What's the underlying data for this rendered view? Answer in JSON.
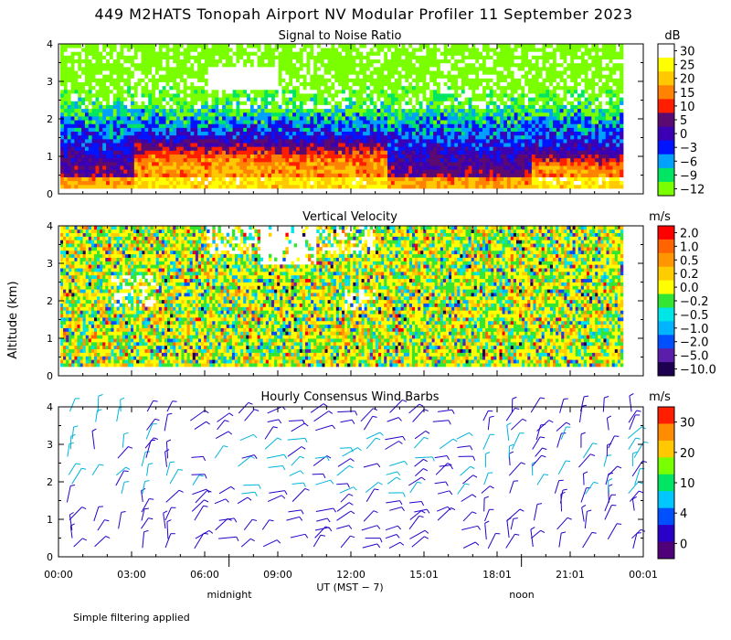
{
  "title": "449 M2HATS Tonopah Airport NV Modular Profiler 11 September 2023",
  "ylabel": "Altitude (km)",
  "xlabel": "UT  (MST − 7)",
  "day_labels": [
    "midnight",
    "noon"
  ],
  "footnote": "Simple filtering applied",
  "x_ticks": [
    "00:00",
    "03:00",
    "06:00",
    "09:00",
    "12:00",
    "15:01",
    "18:01",
    "21:01",
    "00:01"
  ],
  "y_ticks": [
    "0",
    "1",
    "2",
    "3",
    "4"
  ],
  "chart_data": [
    {
      "type": "heatmap",
      "title": "Signal to Noise Ratio",
      "unit": "dB",
      "ylim": [
        0,
        4
      ],
      "xlim_hours": [
        0,
        24
      ],
      "colorbar": {
        "labels": [
          "30",
          "25",
          "20",
          "15",
          "10",
          "5",
          "0",
          "−3",
          "−6",
          "−9",
          "−12"
        ],
        "colors": [
          "#ffffff",
          "#ffff00",
          "#ffc800",
          "#ff8200",
          "#ff1e00",
          "#5a0a70",
          "#3c00b4",
          "#0014ff",
          "#00a0ff",
          "#00e664",
          "#7aff00"
        ]
      }
    },
    {
      "type": "heatmap",
      "title": "Vertical Velocity",
      "unit": "m/s",
      "ylim": [
        0,
        4
      ],
      "xlim_hours": [
        0,
        24
      ],
      "colorbar": {
        "labels": [
          "2.0",
          "1.0",
          "0.5",
          "0.2",
          "0.0",
          "−0.2",
          "−0.5",
          "−1.0",
          "−2.0",
          "−5.0",
          "−10.0"
        ],
        "colors": [
          "#ff0000",
          "#ff6400",
          "#ff9600",
          "#ffcc00",
          "#ffff00",
          "#32e632",
          "#00e6e6",
          "#00b4ff",
          "#0050ff",
          "#5a1eaa",
          "#1e0050"
        ]
      }
    },
    {
      "type": "wind_barbs",
      "title": "Hourly Consensus Wind Barbs",
      "unit": "m/s",
      "ylim": [
        0,
        4
      ],
      "xlim_hours": [
        0,
        24
      ],
      "colorbar": {
        "labels": [
          "30",
          "20",
          "10",
          "4",
          "0"
        ],
        "colors": [
          "#ff1e00",
          "#ff8c00",
          "#ffc800",
          "#78ff00",
          "#00e664",
          "#00c8ff",
          "#0050ff",
          "#2800c8",
          "#500078"
        ]
      }
    }
  ]
}
